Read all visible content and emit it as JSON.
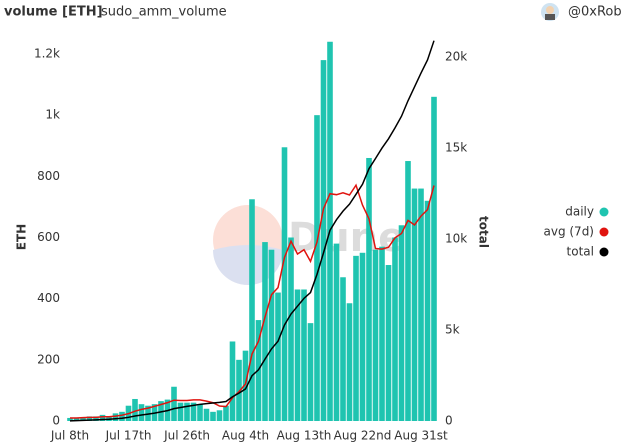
{
  "header": {
    "title": "volume [ETH]",
    "subtitle": "sudo_amm_volume",
    "author": "@0xRob"
  },
  "chart_data": {
    "type": "bar",
    "watermark": "Dune",
    "ylabel": "ETH",
    "y2label": "total",
    "categories": [
      "Jul 8th",
      null,
      null,
      null,
      null,
      null,
      null,
      null,
      null,
      "Jul 17th",
      null,
      null,
      null,
      null,
      null,
      null,
      null,
      null,
      "Jul 26th",
      null,
      null,
      null,
      null,
      null,
      null,
      null,
      null,
      "Aug 4th",
      null,
      null,
      null,
      null,
      null,
      null,
      null,
      null,
      "Aug 13th",
      null,
      null,
      null,
      null,
      null,
      null,
      null,
      null,
      "Aug 22nd",
      null,
      null,
      null,
      null,
      null,
      null,
      null,
      null,
      "Aug 31st",
      null,
      null
    ],
    "series": [
      {
        "name": "daily",
        "type": "bar",
        "color": "#1fc4b0",
        "values": [
          10,
          10,
          12,
          15,
          15,
          20,
          15,
          25,
          30,
          50,
          72,
          55,
          50,
          55,
          65,
          70,
          112,
          60,
          60,
          60,
          55,
          40,
          30,
          35,
          50,
          260,
          200,
          230,
          725,
          330,
          585,
          560,
          420,
          895,
          600,
          430,
          430,
          320,
          1000,
          1180,
          1240,
          580,
          470,
          385,
          540,
          550,
          860,
          560,
          570,
          510,
          600,
          640,
          850,
          760,
          760,
          720,
          1060
        ]
      },
      {
        "name": "avg (7d)",
        "type": "line",
        "color": "#e0140f",
        "values": [
          10,
          10,
          11,
          12,
          12,
          14,
          14,
          16,
          19,
          24,
          32,
          38,
          42,
          48,
          54,
          60,
          68,
          67,
          67,
          69,
          69,
          65,
          60,
          49,
          47,
          76,
          96,
          121,
          219,
          261,
          340,
          413,
          436,
          535,
          588,
          546,
          560,
          522,
          585,
          694,
          743,
          740,
          746,
          739,
          771,
          706,
          661,
          564,
          562,
          568,
          599,
          613,
          656,
          641,
          670,
          691,
          770
        ]
      },
      {
        "name": "total",
        "type": "line",
        "axis": "y2",
        "color": "#000000",
        "values": [
          10,
          20,
          32,
          47,
          62,
          82,
          97,
          122,
          152,
          202,
          274,
          329,
          379,
          434,
          499,
          569,
          681,
          741,
          801,
          861,
          916,
          956,
          986,
          1021,
          1071,
          1331,
          1531,
          1761,
          2486,
          2816,
          3401,
          3961,
          4381,
          5276,
          5876,
          6306,
          6736,
          7056,
          8056,
          9236,
          10476,
          11056,
          11526,
          11911,
          12451,
          13001,
          13861,
          14421,
          14991,
          15501,
          16101,
          16741,
          17591,
          18351,
          19111,
          19831,
          20891
        ]
      }
    ],
    "ylim": [
      0,
      1250
    ],
    "yticks": [
      0,
      200,
      400,
      600,
      800,
      {
        "value": 1000,
        "label": "1k"
      },
      {
        "value": 1200,
        "label": "1.2k"
      }
    ],
    "y2lim": [
      0,
      21000
    ],
    "y2ticks": [
      0,
      {
        "value": 5000,
        "label": "5k"
      },
      {
        "value": 10000,
        "label": "10k"
      },
      {
        "value": 15000,
        "label": "15k"
      },
      {
        "value": 20000,
        "label": "20k"
      }
    ],
    "legend": "right"
  }
}
